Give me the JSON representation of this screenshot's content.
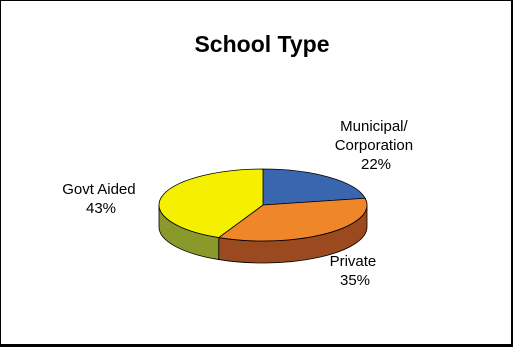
{
  "chart_data": {
    "type": "pie",
    "title": "School Type",
    "slices": [
      {
        "label_lines": [
          "Municipal/",
          "Corporation"
        ],
        "value_text": "22%",
        "value": 22,
        "top_color": "#3a66b0",
        "side_color": "#28488a"
      },
      {
        "label_lines": [
          "Private"
        ],
        "value_text": "35%",
        "value": 35,
        "top_color": "#f0862a",
        "side_color": "#9a4a1e"
      },
      {
        "label_lines": [
          "Govt Aided"
        ],
        "value_text": "43%",
        "value": 43,
        "top_color": "#f4f000",
        "side_color": "#8a9a2a"
      }
    ],
    "three_d": true,
    "legend": "none"
  }
}
